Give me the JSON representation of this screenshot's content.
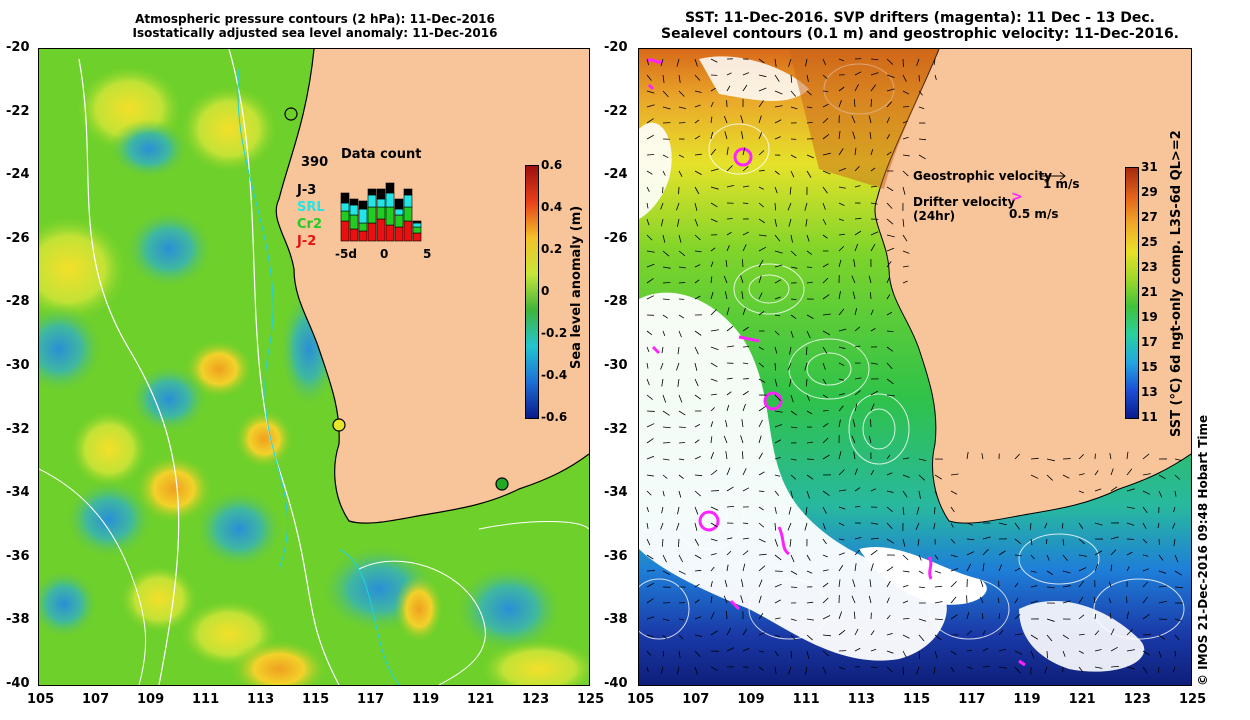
{
  "left_panel": {
    "title_line1": "Atmospheric pressure contours (2 hPa): 11-Dec-2016",
    "title_line2": "Isostatically adjusted sea level anomaly: 11-Dec-2016",
    "colorbar": {
      "label": "Sea level anomaly (m)",
      "ticks": [
        "0.6",
        "0.4",
        "0.2",
        "0",
        "-0.2",
        "-0.4",
        "-0.6"
      ],
      "colors": [
        "#0a1a8c",
        "#1c6fd6",
        "#22c6d0",
        "#3fb53a",
        "#c8e63a",
        "#f3c12a",
        "#e8401a",
        "#9b1010"
      ]
    },
    "data_count": {
      "total": "390",
      "title": "Data count",
      "missions": [
        {
          "name": "J-3",
          "color": "#000000"
        },
        {
          "name": "SRL",
          "color": "#22e6e6"
        },
        {
          "name": "Cr2",
          "color": "#22cc22"
        },
        {
          "name": "J-2",
          "color": "#e81010"
        }
      ],
      "xticks": [
        "-5d",
        "0",
        "5"
      ]
    }
  },
  "right_panel": {
    "title_line1": "SST: 11-Dec-2016. SVP drifters (magenta): 11 Dec - 13 Dec.",
    "title_line2": "Sealevel contours (0.1 m) and geostrophic velocity: 11-Dec-2016.",
    "legend": {
      "geostrophic_label": "Geostrophic velocity",
      "geostrophic_scale": "1 m/s",
      "drifter_label_line1": "Drifter velocity",
      "drifter_label_line2": "(24hr)",
      "drifter_scale": "0.5 m/s"
    },
    "colorbar": {
      "label": "SST (°C) 6d ngt-only comp. L3S-6d QL>=2",
      "ticks": [
        "31",
        "29",
        "27",
        "25",
        "23",
        "21",
        "19",
        "17",
        "15",
        "13",
        "11"
      ],
      "colors": [
        "#0a1a8c",
        "#1c4fd6",
        "#22a6e0",
        "#2ad0a0",
        "#3fc23a",
        "#9ed82a",
        "#e8e02a",
        "#f0a82a",
        "#e0601a",
        "#a52a10"
      ]
    },
    "credit": "© IMOS 21-Dec-2016 09:48 Hobart Time"
  },
  "axes": {
    "y_ticks": [
      "-20",
      "-22",
      "-24",
      "-26",
      "-28",
      "-30",
      "-32",
      "-34",
      "-36",
      "-38",
      "-40"
    ],
    "x_ticks": [
      "105",
      "107",
      "109",
      "111",
      "113",
      "115",
      "117",
      "119",
      "121",
      "123",
      "125"
    ]
  },
  "colors": {
    "land": "#f8c49a",
    "sla_background": "#6ed02a",
    "sst_warm": "#e8a22a",
    "sst_mid": "#3ec43a",
    "sst_cool": "#1a6ed6",
    "drifter": "#ff22ff"
  }
}
